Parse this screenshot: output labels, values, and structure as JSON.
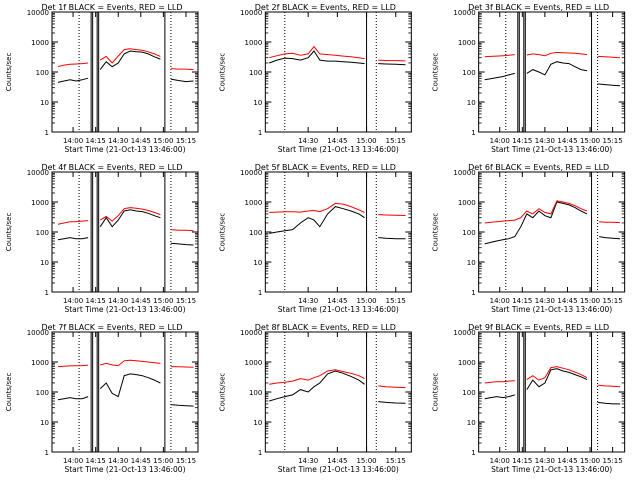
{
  "colors": {
    "events": "#000000",
    "lld": "#ff0000",
    "background": "#ffffff",
    "axes": "#000000"
  },
  "chart_data": [
    {
      "type": "line",
      "title": "Det 1f BLACK = Events, RED = LLD",
      "xlabel": "Start Time (21-Oct-13 13:46:00)",
      "ylabel": "Counts/sec",
      "yscale": "log",
      "ylim": [
        1,
        10000
      ],
      "yticks": [
        "1",
        "10",
        "100",
        "1000",
        "10000"
      ],
      "xtick_labels": [
        "14:00",
        "14:15",
        "14:30",
        "14:45",
        "15:00",
        "15:15"
      ],
      "xrange": [
        "13:46",
        "15:23"
      ],
      "gaps": [
        [
          "14:12",
          "14:17"
        ],
        [
          "15:01",
          "15:05"
        ]
      ],
      "vlines_solid": [
        "14:12",
        "14:13",
        "14:16",
        "14:17",
        "15:01"
      ],
      "vlines_dotted": [
        "14:04",
        "15:05"
      ],
      "x": [
        "13:50",
        "13:54",
        "13:58",
        "14:02",
        "14:06",
        "14:10",
        "14:18",
        "14:22",
        "14:26",
        "14:30",
        "14:34",
        "14:38",
        "14:42",
        "14:46",
        "14:50",
        "14:54",
        "14:58",
        "15:05",
        "15:10",
        "15:15",
        "15:20"
      ],
      "series": [
        {
          "name": "Events",
          "color": "black",
          "values": [
            45,
            50,
            55,
            50,
            55,
            62,
            120,
            220,
            150,
            200,
            400,
            500,
            470,
            460,
            400,
            320,
            270,
            58,
            52,
            48,
            50
          ]
        },
        {
          "name": "LLD",
          "color": "red",
          "values": [
            150,
            170,
            180,
            185,
            190,
            200,
            250,
            330,
            200,
            340,
            560,
            600,
            560,
            530,
            470,
            400,
            330,
            130,
            125,
            125,
            120
          ]
        }
      ]
    },
    {
      "type": "line",
      "title": "Det 2f BLACK = Events, RED = LLD",
      "xlabel": "Start Time (21-Oct-13 13:46:00)",
      "ylabel": "Counts/sec",
      "yscale": "log",
      "ylim": [
        1,
        10000
      ],
      "yticks": [
        "1",
        "10",
        "100",
        "1000",
        "10000"
      ],
      "xtick_labels": [
        "14:30",
        "14:45",
        "15:00",
        "15:15"
      ],
      "xrange": [
        "14:08",
        "15:23"
      ],
      "gaps": [
        [
          "15:00",
          "15:05"
        ]
      ],
      "vlines_solid": [
        "15:00"
      ],
      "vlines_dotted": [
        "14:18",
        "15:05"
      ],
      "x": [
        "14:10",
        "14:14",
        "14:18",
        "14:22",
        "14:26",
        "14:30",
        "14:33",
        "14:36",
        "14:40",
        "14:44",
        "14:48",
        "14:52",
        "14:56",
        "14:59",
        "15:06",
        "15:10",
        "15:15",
        "15:20"
      ],
      "series": [
        {
          "name": "Events",
          "color": "black",
          "values": [
            200,
            250,
            290,
            280,
            250,
            300,
            500,
            250,
            230,
            230,
            220,
            210,
            200,
            190,
            190,
            185,
            180,
            175
          ]
        },
        {
          "name": "LLD",
          "color": "red",
          "values": [
            300,
            350,
            400,
            420,
            360,
            400,
            700,
            400,
            380,
            360,
            340,
            320,
            300,
            280,
            250,
            240,
            240,
            235
          ]
        }
      ]
    },
    {
      "type": "line",
      "title": "Det 3f BLACK = Events, RED = LLD",
      "xlabel": "Start Time (21-Oct-13 13:46:00)",
      "ylabel": "Counts/sec",
      "yscale": "log",
      "ylim": [
        1,
        10000
      ],
      "yticks": [
        "1",
        "10",
        "100",
        "1000",
        "10000"
      ],
      "xtick_labels": [
        "14:00",
        "14:15",
        "14:30",
        "14:45",
        "15:00",
        "15:15"
      ],
      "xrange": [
        "13:46",
        "15:23"
      ],
      "gaps": [
        [
          "14:12",
          "14:17"
        ],
        [
          "15:01",
          "15:05"
        ]
      ],
      "vlines_solid": [
        "14:12",
        "14:13",
        "14:16",
        "14:17",
        "15:01"
      ],
      "vlines_dotted": [
        "14:04",
        "15:05"
      ],
      "x": [
        "13:50",
        "13:54",
        "13:58",
        "14:02",
        "14:06",
        "14:10",
        "14:18",
        "14:22",
        "14:26",
        "14:30",
        "14:34",
        "14:38",
        "14:42",
        "14:46",
        "14:50",
        "14:54",
        "14:58",
        "15:05",
        "15:10",
        "15:15",
        "15:20"
      ],
      "series": [
        {
          "name": "Events",
          "color": "black",
          "values": [
            55,
            60,
            65,
            70,
            80,
            90,
            90,
            120,
            100,
            80,
            180,
            220,
            200,
            190,
            150,
            120,
            110,
            40,
            38,
            36,
            35
          ]
        },
        {
          "name": "LLD",
          "color": "red",
          "values": [
            320,
            330,
            340,
            350,
            360,
            380,
            370,
            400,
            380,
            350,
            420,
            450,
            440,
            430,
            420,
            400,
            380,
            330,
            320,
            310,
            300
          ]
        }
      ]
    },
    {
      "type": "line",
      "title": "Det 4f BLACK = Events, RED = LLD",
      "xlabel": "Start Time (21-Oct-13 13:46:00)",
      "ylabel": "Counts/sec",
      "yscale": "log",
      "ylim": [
        1,
        10000
      ],
      "yticks": [
        "1",
        "10",
        "100",
        "1000",
        "10000"
      ],
      "xtick_labels": [
        "14:00",
        "14:15",
        "14:30",
        "14:45",
        "15:00",
        "15:15"
      ],
      "xrange": [
        "13:46",
        "15:23"
      ],
      "gaps": [
        [
          "14:12",
          "14:17"
        ],
        [
          "15:01",
          "15:05"
        ]
      ],
      "vlines_solid": [
        "14:12",
        "14:13",
        "14:16",
        "14:17",
        "15:01"
      ],
      "vlines_dotted": [
        "14:04",
        "15:05"
      ],
      "x": [
        "13:50",
        "13:54",
        "13:58",
        "14:02",
        "14:06",
        "14:10",
        "14:18",
        "14:22",
        "14:26",
        "14:30",
        "14:34",
        "14:38",
        "14:42",
        "14:46",
        "14:50",
        "14:54",
        "14:58",
        "15:05",
        "15:10",
        "15:15",
        "15:20"
      ],
      "series": [
        {
          "name": "Events",
          "color": "black",
          "values": [
            55,
            60,
            65,
            60,
            60,
            65,
            150,
            300,
            150,
            250,
            500,
            550,
            500,
            480,
            420,
            350,
            300,
            42,
            40,
            38,
            37
          ]
        },
        {
          "name": "LLD",
          "color": "red",
          "values": [
            180,
            200,
            220,
            220,
            230,
            240,
            250,
            330,
            230,
            350,
            600,
            650,
            620,
            580,
            520,
            450,
            380,
            120,
            115,
            115,
            110
          ]
        }
      ]
    },
    {
      "type": "line",
      "title": "Det 5f BLACK = Events, RED = LLD",
      "xlabel": "Start Time (21-Oct-13 13:46:00)",
      "ylabel": "Counts/sec",
      "yscale": "log",
      "ylim": [
        1,
        10000
      ],
      "yticks": [
        "1",
        "10",
        "100",
        "1000",
        "10000"
      ],
      "xtick_labels": [
        "14:30",
        "14:45",
        "15:00",
        "15:15"
      ],
      "xrange": [
        "14:08",
        "15:23"
      ],
      "gaps": [
        [
          "15:00",
          "15:05"
        ]
      ],
      "vlines_solid": [
        "15:00"
      ],
      "vlines_dotted": [
        "14:18",
        "15:05"
      ],
      "x": [
        "14:10",
        "14:14",
        "14:18",
        "14:22",
        "14:26",
        "14:30",
        "14:33",
        "14:36",
        "14:40",
        "14:44",
        "14:48",
        "14:52",
        "14:56",
        "14:59",
        "15:06",
        "15:10",
        "15:15",
        "15:20"
      ],
      "series": [
        {
          "name": "Events",
          "color": "black",
          "values": [
            90,
            100,
            110,
            120,
            200,
            300,
            250,
            150,
            400,
            700,
            600,
            500,
            400,
            300,
            65,
            62,
            60,
            60
          ]
        },
        {
          "name": "LLD",
          "color": "red",
          "values": [
            450,
            460,
            470,
            470,
            460,
            500,
            520,
            480,
            600,
            900,
            850,
            700,
            550,
            450,
            380,
            370,
            360,
            355
          ]
        }
      ]
    },
    {
      "type": "line",
      "title": "Det 6f BLACK = Events, RED = LLD",
      "xlabel": "Start Time (21-Oct-13 13:46:00)",
      "ylabel": "Counts/sec",
      "yscale": "log",
      "ylim": [
        1,
        10000
      ],
      "yticks": [
        "1",
        "10",
        "100",
        "1000",
        "10000"
      ],
      "xtick_labels": [
        "14:00",
        "14:15",
        "14:30",
        "14:45",
        "15:00",
        "15:15"
      ],
      "xrange": [
        "13:46",
        "15:23"
      ],
      "gaps": [
        [
          "15:01",
          "15:05"
        ]
      ],
      "vlines_solid": [
        "15:01"
      ],
      "vlines_dotted": [
        "14:04",
        "15:05"
      ],
      "x": [
        "13:50",
        "13:54",
        "13:58",
        "14:02",
        "14:06",
        "14:10",
        "14:14",
        "14:18",
        "14:22",
        "14:26",
        "14:30",
        "14:34",
        "14:38",
        "14:42",
        "14:46",
        "14:50",
        "14:54",
        "14:58",
        "15:06",
        "15:10",
        "15:15",
        "15:20"
      ],
      "series": [
        {
          "name": "Events",
          "color": "black",
          "values": [
            40,
            45,
            50,
            55,
            60,
            70,
            150,
            400,
            300,
            500,
            350,
            300,
            1000,
            900,
            800,
            650,
            500,
            400,
            70,
            65,
            62,
            60
          ]
        },
        {
          "name": "LLD",
          "color": "red",
          "values": [
            200,
            210,
            220,
            230,
            240,
            250,
            300,
            500,
            400,
            600,
            450,
            400,
            1100,
            1000,
            900,
            750,
            600,
            500,
            220,
            210,
            210,
            205
          ]
        }
      ]
    },
    {
      "type": "line",
      "title": "Det 7f BLACK = Events, RED = LLD",
      "xlabel": "Start Time (21-Oct-13 13:46:00)",
      "ylabel": "Counts/sec",
      "yscale": "log",
      "ylim": [
        1,
        10000
      ],
      "yticks": [
        "1",
        "10",
        "100",
        "1000",
        "10000"
      ],
      "xtick_labels": [
        "14:00",
        "14:15",
        "14:30",
        "14:45",
        "15:00",
        "15:15"
      ],
      "xrange": [
        "13:46",
        "15:23"
      ],
      "gaps": [
        [
          "14:12",
          "14:17"
        ],
        [
          "15:01",
          "15:05"
        ]
      ],
      "vlines_solid": [
        "14:12",
        "14:13",
        "14:16",
        "14:17",
        "15:01"
      ],
      "vlines_dotted": [
        "14:04",
        "15:05"
      ],
      "x": [
        "13:50",
        "13:54",
        "13:58",
        "14:02",
        "14:06",
        "14:10",
        "14:18",
        "14:22",
        "14:26",
        "14:30",
        "14:34",
        "14:38",
        "14:42",
        "14:46",
        "14:50",
        "14:54",
        "14:58",
        "15:05",
        "15:10",
        "15:15",
        "15:20"
      ],
      "series": [
        {
          "name": "Events",
          "color": "black",
          "values": [
            55,
            60,
            65,
            60,
            60,
            70,
            130,
            200,
            90,
            70,
            350,
            400,
            380,
            350,
            300,
            250,
            200,
            38,
            36,
            35,
            34
          ]
        },
        {
          "name": "LLD",
          "color": "red",
          "values": [
            700,
            720,
            740,
            750,
            760,
            780,
            800,
            900,
            800,
            750,
            1100,
            1150,
            1100,
            1050,
            1000,
            950,
            900,
            700,
            690,
            680,
            670
          ]
        }
      ]
    },
    {
      "type": "line",
      "title": "Det 8f BLACK = Events, RED = LLD",
      "xlabel": "Start Time (21-Oct-13 13:46:00)",
      "ylabel": "Counts/sec",
      "yscale": "log",
      "ylim": [
        1,
        10000
      ],
      "yticks": [
        "1",
        "10",
        "100",
        "1000",
        "10000"
      ],
      "xtick_labels": [
        "14:30",
        "14:45",
        "15:00",
        "15:15"
      ],
      "xrange": [
        "14:08",
        "15:23"
      ],
      "gaps": [
        [
          "15:00",
          "15:05"
        ]
      ],
      "vlines_solid": [
        "15:00"
      ],
      "vlines_dotted": [
        "14:18",
        "15:05"
      ],
      "x": [
        "14:10",
        "14:14",
        "14:18",
        "14:22",
        "14:26",
        "14:30",
        "14:33",
        "14:36",
        "14:40",
        "14:44",
        "14:48",
        "14:52",
        "14:56",
        "14:59",
        "15:06",
        "15:10",
        "15:15",
        "15:20"
      ],
      "series": [
        {
          "name": "Events",
          "color": "black",
          "values": [
            50,
            60,
            70,
            80,
            120,
            100,
            150,
            200,
            400,
            500,
            420,
            330,
            250,
            180,
            48,
            45,
            43,
            42
          ]
        },
        {
          "name": "LLD",
          "color": "red",
          "values": [
            180,
            200,
            210,
            230,
            280,
            250,
            300,
            350,
            500,
            550,
            480,
            420,
            350,
            280,
            160,
            150,
            145,
            140
          ]
        }
      ]
    },
    {
      "type": "line",
      "title": "Det 9f BLACK = Events, RED = LLD",
      "xlabel": "Start Time (21-Oct-13 13:46:00)",
      "ylabel": "Counts/sec",
      "yscale": "log",
      "ylim": [
        1,
        10000
      ],
      "yticks": [
        "1",
        "10",
        "100",
        "1000",
        "10000"
      ],
      "xtick_labels": [
        "14:00",
        "14:15",
        "14:30",
        "14:45",
        "15:00",
        "15:15"
      ],
      "xrange": [
        "13:46",
        "15:23"
      ],
      "gaps": [
        [
          "14:12",
          "14:17"
        ],
        [
          "15:01",
          "15:05"
        ]
      ],
      "vlines_solid": [
        "14:12",
        "14:13",
        "14:16",
        "14:17",
        "15:01"
      ],
      "vlines_dotted": [
        "14:04",
        "15:05"
      ],
      "x": [
        "13:50",
        "13:54",
        "13:58",
        "14:02",
        "14:06",
        "14:10",
        "14:18",
        "14:22",
        "14:26",
        "14:30",
        "14:34",
        "14:38",
        "14:42",
        "14:46",
        "14:50",
        "14:54",
        "14:58",
        "15:05",
        "15:10",
        "15:15",
        "15:20"
      ],
      "series": [
        {
          "name": "Events",
          "color": "black",
          "values": [
            60,
            65,
            70,
            65,
            70,
            80,
            120,
            250,
            150,
            200,
            550,
            600,
            500,
            450,
            380,
            320,
            260,
            45,
            42,
            40,
            40
          ]
        },
        {
          "name": "LLD",
          "color": "red",
          "values": [
            200,
            210,
            220,
            220,
            230,
            240,
            260,
            350,
            250,
            300,
            650,
            700,
            620,
            550,
            460,
            380,
            300,
            170,
            160,
            155,
            150
          ]
        }
      ]
    }
  ]
}
